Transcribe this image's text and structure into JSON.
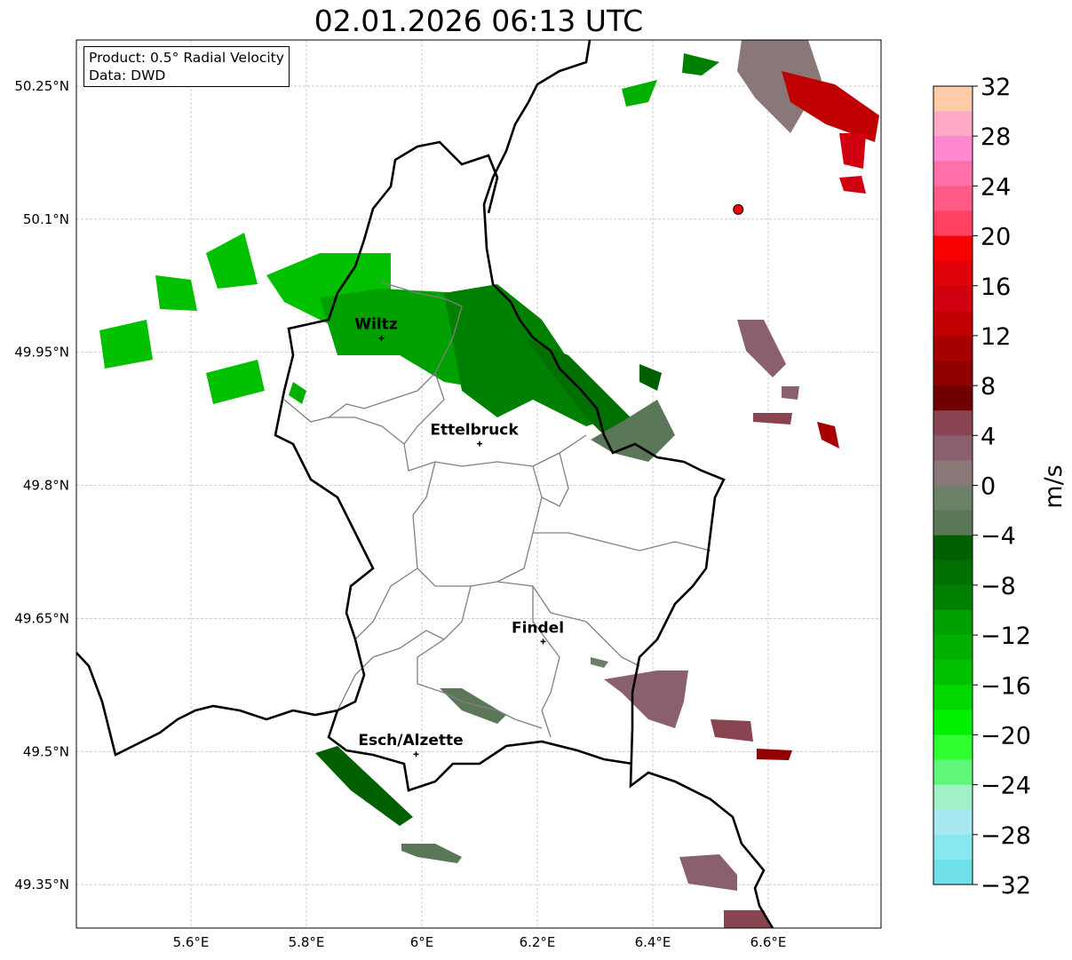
{
  "title": "02.01.2026 06:13 UTC",
  "info": {
    "product": "Product: 0.5° Radial Velocity",
    "source": "Data: DWD"
  },
  "axes": {
    "lon_ticks": [
      {
        "value": 5.6,
        "label": "5.6°E"
      },
      {
        "value": 5.8,
        "label": "5.8°E"
      },
      {
        "value": 6.0,
        "label": "6°E"
      },
      {
        "value": 6.2,
        "label": "6.2°E"
      },
      {
        "value": 6.4,
        "label": "6.4°E"
      },
      {
        "value": 6.6,
        "label": "6.6°E"
      }
    ],
    "lat_ticks": [
      {
        "value": 50.25,
        "label": "50.25°N"
      },
      {
        "value": 50.1,
        "label": "50.1°N"
      },
      {
        "value": 49.95,
        "label": "49.95°N"
      },
      {
        "value": 49.8,
        "label": "49.8°N"
      },
      {
        "value": 49.65,
        "label": "49.65°N"
      },
      {
        "value": 49.5,
        "label": "49.5°N"
      },
      {
        "value": 49.35,
        "label": "49.35°N"
      }
    ],
    "lon_range": [
      5.4,
      6.79
    ],
    "lat_range": [
      49.3,
      50.3
    ]
  },
  "cities": [
    {
      "name": "Wiltz",
      "lon": 5.93,
      "lat": 49.966
    },
    {
      "name": "Ettelbruck",
      "lon": 6.1,
      "lat": 49.847
    },
    {
      "name": "Findel",
      "lon": 6.21,
      "lat": 49.624
    },
    {
      "name": "Esch/Alzette",
      "lon": 5.99,
      "lat": 49.497
    }
  ],
  "radar_site": {
    "lon": 6.548,
    "lat": 50.111,
    "color": "#ff0000"
  },
  "colorbar": {
    "unit": "m/s",
    "min": -32,
    "max": 32,
    "ticks": [
      "32",
      "28",
      "24",
      "20",
      "16",
      "12",
      "8",
      "4",
      "0",
      "−4",
      "−8",
      "−12",
      "−16",
      "−20",
      "−24",
      "−28",
      "−32"
    ],
    "colors_top_to_bottom": [
      "#ffcca8",
      "#ffa8c8",
      "#ff88d0",
      "#ff70a8",
      "#ff5a88",
      "#ff4060",
      "#f80000",
      "#e00008",
      "#d00010",
      "#c00000",
      "#a80000",
      "#900000",
      "#700000",
      "#884450",
      "#8a6070",
      "#8a7878",
      "#6a8068",
      "#5a7858",
      "#006000",
      "#007000",
      "#008000",
      "#00a000",
      "#00b000",
      "#00c000",
      "#00d800",
      "#00f000",
      "#30ff30",
      "#60f878",
      "#a0f0c8",
      "#a8e8f0",
      "#88e8f0",
      "#70e0e8"
    ]
  }
}
